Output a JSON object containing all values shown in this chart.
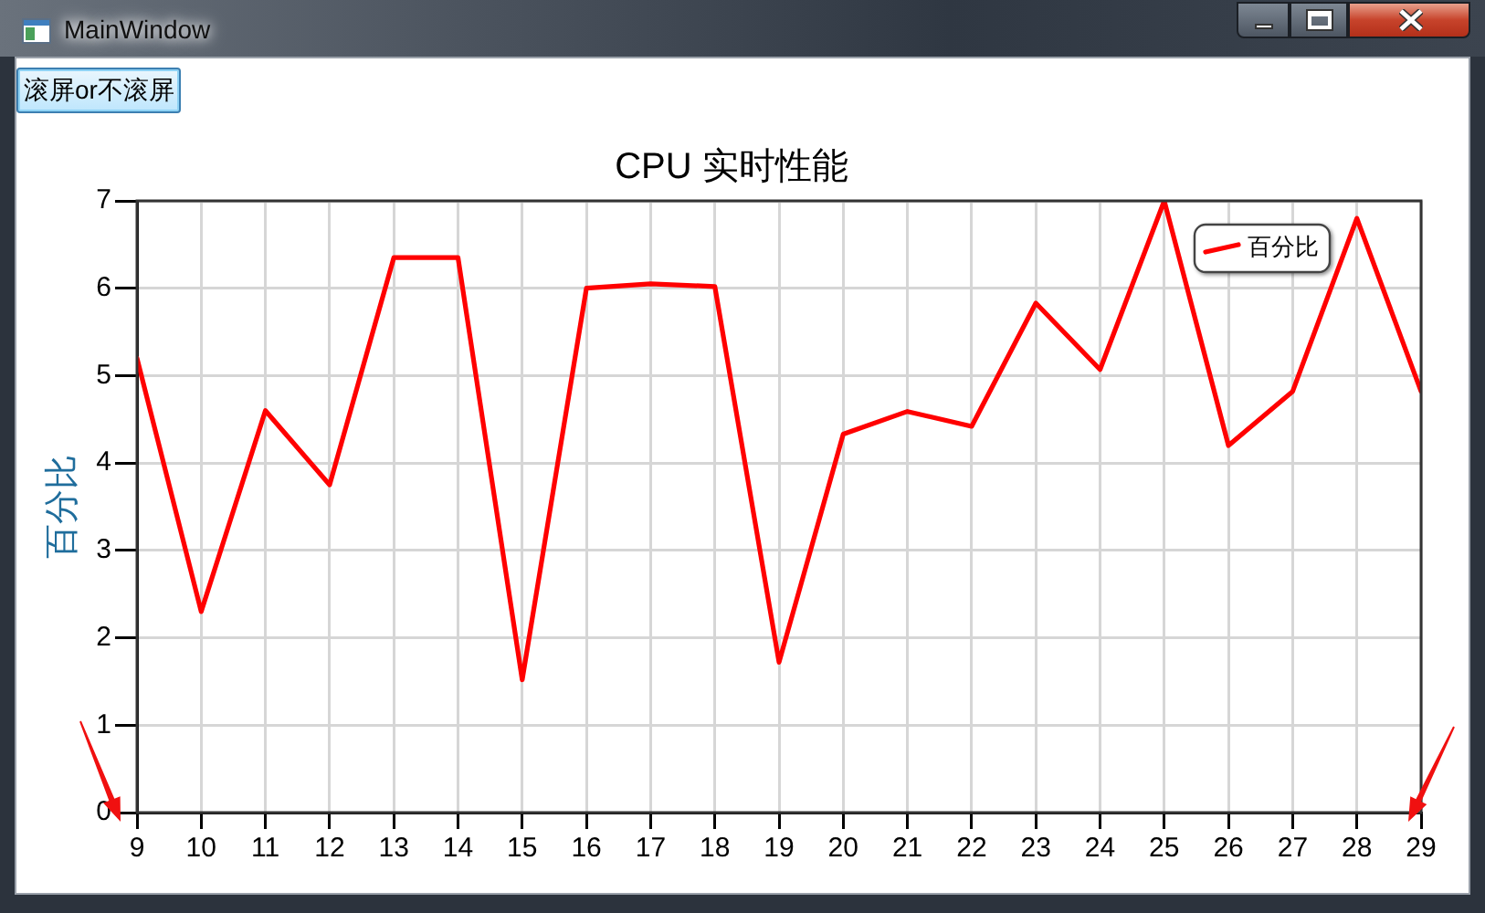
{
  "chart_data": {
    "type": "line",
    "title": "CPU 实时性能",
    "ylabel": "百分比",
    "x": [
      9,
      10,
      11,
      12,
      13,
      14,
      15,
      16,
      17,
      18,
      19,
      20,
      21,
      22,
      23,
      24,
      25,
      26,
      27,
      28,
      29
    ],
    "series": [
      {
        "name": "百分比",
        "color": "#ff0000",
        "values": [
          5.2,
          2.3,
          4.6,
          3.75,
          6.35,
          6.35,
          1.52,
          6.0,
          6.05,
          6.02,
          1.72,
          4.33,
          4.59,
          4.42,
          5.83,
          5.07,
          7,
          4.2,
          4.82,
          6.8,
          4.82
        ]
      }
    ],
    "xlim": [
      9,
      29
    ],
    "xticks": [
      9,
      10,
      11,
      12,
      13,
      14,
      15,
      16,
      17,
      18,
      19,
      20,
      21,
      22,
      23,
      24,
      25,
      26,
      27,
      28,
      29
    ],
    "ylim": [
      0,
      7
    ],
    "yticks": [
      0,
      1,
      2,
      3,
      4,
      5,
      6,
      7
    ],
    "grid": true,
    "legend": "top right",
    "marker": "none",
    "line_style": "solid",
    "annotations": [
      "MainWindow",
      "滚屏or不滚屏"
    ]
  }
}
